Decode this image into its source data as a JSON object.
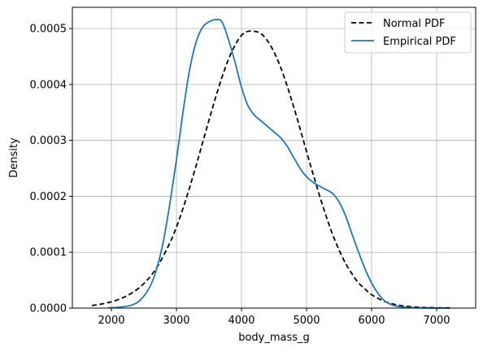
{
  "chart_data": {
    "type": "line",
    "title": "",
    "xlabel": "body_mass_g",
    "ylabel": "Density",
    "xlim": [
      1400,
      7600
    ],
    "ylim": [
      0,
      0.000538
    ],
    "x_ticks": [
      2000,
      3000,
      4000,
      5000,
      6000,
      7000
    ],
    "x_tick_labels": [
      "2000",
      "3000",
      "4000",
      "5000",
      "6000",
      "7000"
    ],
    "y_ticks": [
      0,
      0.0001,
      0.0002,
      0.0003,
      0.0004,
      0.0005
    ],
    "y_tick_labels": [
      "0.0000",
      "0.0001",
      "0.0002",
      "0.0003",
      "0.0004",
      "0.0005"
    ],
    "grid": true,
    "legend": "top-right",
    "series": [
      {
        "name": "Normal PDF",
        "color": "#000000",
        "style": "dashed",
        "points": [
          [
            1700,
            4.5e-06
          ],
          [
            1900,
            8.5e-06
          ],
          [
            2100,
            1.5e-05
          ],
          [
            2300,
            2.6e-05
          ],
          [
            2500,
            4.4e-05
          ],
          [
            2700,
            7.3e-05
          ],
          [
            2900,
            0.000117
          ],
          [
            3000,
            0.000145
          ],
          [
            3100,
            0.000178
          ],
          [
            3200,
            0.000215
          ],
          [
            3300,
            0.000254
          ],
          [
            3400,
            0.000295
          ],
          [
            3500,
            0.000336
          ],
          [
            3600,
            0.000376
          ],
          [
            3700,
            0.000413
          ],
          [
            3800,
            0.000445
          ],
          [
            3900,
            0.00047
          ],
          [
            4000,
            0.000488
          ],
          [
            4100,
            0.000495
          ],
          [
            4200,
            0.000495
          ],
          [
            4300,
            0.000491
          ],
          [
            4400,
            0.000478
          ],
          [
            4500,
            0.000458
          ],
          [
            4600,
            0.000431
          ],
          [
            4700,
            0.000398
          ],
          [
            4800,
            0.000361
          ],
          [
            4900,
            0.000321
          ],
          [
            5000,
            0.00028
          ],
          [
            5100,
            0.00024
          ],
          [
            5200,
            0.000201
          ],
          [
            5300,
            0.000165
          ],
          [
            5400,
            0.000132
          ],
          [
            5500,
            0.000104
          ],
          [
            5600,
            8e-05
          ],
          [
            5700,
            6.1e-05
          ],
          [
            5800,
            4.5e-05
          ],
          [
            5900,
            3.4e-05
          ],
          [
            6000,
            2.4e-05
          ],
          [
            6200,
            1.2e-05
          ],
          [
            6400,
            5.5e-06
          ],
          [
            6600,
            2.5e-06
          ],
          [
            6800,
            1.1e-06
          ],
          [
            7000,
            6e-07
          ],
          [
            7250,
            2e-07
          ]
        ]
      },
      {
        "name": "Empirical PDF",
        "color": "#1f77b4",
        "style": "solid",
        "points": [
          [
            1950,
            3e-07
          ],
          [
            2100,
            1.5e-06
          ],
          [
            2300,
            5e-06
          ],
          [
            2450,
            1.5e-05
          ],
          [
            2600,
            4e-05
          ],
          [
            2700,
            7.2e-05
          ],
          [
            2800,
            0.00012
          ],
          [
            2900,
            0.000188
          ],
          [
            3000,
            0.000265
          ],
          [
            3100,
            0.00035
          ],
          [
            3200,
            0.000425
          ],
          [
            3300,
            0.000475
          ],
          [
            3400,
            0.000502
          ],
          [
            3500,
            0.000512
          ],
          [
            3600,
            0.000516
          ],
          [
            3700,
            0.000512
          ],
          [
            3800,
            0.00048
          ],
          [
            3900,
            0.00044
          ],
          [
            4000,
            0.000395
          ],
          [
            4100,
            0.000362
          ],
          [
            4200,
            0.000345
          ],
          [
            4300,
            0.000335
          ],
          [
            4400,
            0.000325
          ],
          [
            4500,
            0.000315
          ],
          [
            4600,
            0.000305
          ],
          [
            4700,
            0.00029
          ],
          [
            4800,
            0.00027
          ],
          [
            4900,
            0.00025
          ],
          [
            5000,
            0.000235
          ],
          [
            5100,
            0.000225
          ],
          [
            5200,
            0.000218
          ],
          [
            5300,
            0.000212
          ],
          [
            5400,
            0.000205
          ],
          [
            5500,
            0.00019
          ],
          [
            5600,
            0.000165
          ],
          [
            5700,
            0.000132
          ],
          [
            5800,
            0.0001
          ],
          [
            5900,
            7e-05
          ],
          [
            6000,
            4.5e-05
          ],
          [
            6100,
            2.6e-05
          ],
          [
            6200,
            1.3e-05
          ],
          [
            6300,
            6.5e-06
          ],
          [
            6400,
            3e-06
          ],
          [
            6600,
            9e-07
          ],
          [
            6800,
            3e-07
          ],
          [
            7000,
            1e-07
          ],
          [
            7150,
            1e-07
          ]
        ]
      }
    ]
  }
}
